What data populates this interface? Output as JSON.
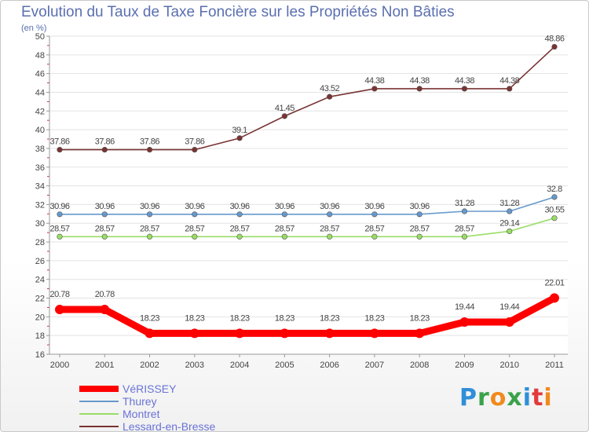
{
  "chart_data": {
    "type": "line",
    "title": "Evolution du Taux de Taxe Foncière sur les Propriétés Non Bâties",
    "subtitle": "(en %)",
    "x": [
      "2000",
      "2001",
      "2002",
      "2003",
      "2004",
      "2005",
      "2006",
      "2007",
      "2008",
      "2009",
      "2010",
      "2011"
    ],
    "y_ticks": [
      16,
      18,
      20,
      22,
      24,
      26,
      28,
      30,
      32,
      34,
      36,
      38,
      40,
      42,
      44,
      46,
      48,
      50
    ],
    "ylim": [
      16,
      50
    ],
    "grid": "horizontal",
    "legend_position": "bottom-left",
    "series": [
      {
        "name": "VéRISSEY",
        "color": "#ff0000",
        "values": [
          20.78,
          20.78,
          18.23,
          18.23,
          18.23,
          18.23,
          18.23,
          18.23,
          18.23,
          19.44,
          19.44,
          22.01
        ],
        "labels": [
          "20.78",
          "20.78",
          "18.23",
          "18.23",
          "18.23",
          "18.23",
          "18.23",
          "18.23",
          "18.23",
          "19.44",
          "19.44",
          "22.01"
        ]
      },
      {
        "name": "Thurey",
        "color": "#6699cc",
        "values": [
          30.96,
          30.96,
          30.96,
          30.96,
          30.96,
          30.96,
          30.96,
          30.96,
          30.96,
          31.28,
          31.28,
          32.8
        ],
        "labels": [
          "30.96",
          "30.96",
          "30.96",
          "30.96",
          "30.96",
          "30.96",
          "30.96",
          "30.96",
          "30.96",
          "31.28",
          "31.28",
          "32.8"
        ]
      },
      {
        "name": "Montret",
        "color": "#99dd66",
        "values": [
          28.57,
          28.57,
          28.57,
          28.57,
          28.57,
          28.57,
          28.57,
          28.57,
          28.57,
          28.57,
          29.14,
          30.55
        ],
        "labels": [
          "28.57",
          "28.57",
          "28.57",
          "28.57",
          "28.57",
          "28.57",
          "28.57",
          "28.57",
          "28.57",
          "28.57",
          "29.14",
          "30.55"
        ]
      },
      {
        "name": "Lessard-en-Bresse",
        "color": "#7a3333",
        "values": [
          37.86,
          37.86,
          37.86,
          37.86,
          39.1,
          41.45,
          43.52,
          44.38,
          44.38,
          44.38,
          44.38,
          48.86
        ],
        "labels": [
          "37.86",
          "37.86",
          "37.86",
          "37.86",
          "39.1",
          "41.45",
          "43.52",
          "44.38",
          "44.38",
          "44.38",
          "44.38",
          "48.86"
        ]
      }
    ]
  },
  "logo": {
    "letters": [
      "P",
      "r",
      "o",
      "x",
      "i",
      "t",
      "i"
    ]
  }
}
